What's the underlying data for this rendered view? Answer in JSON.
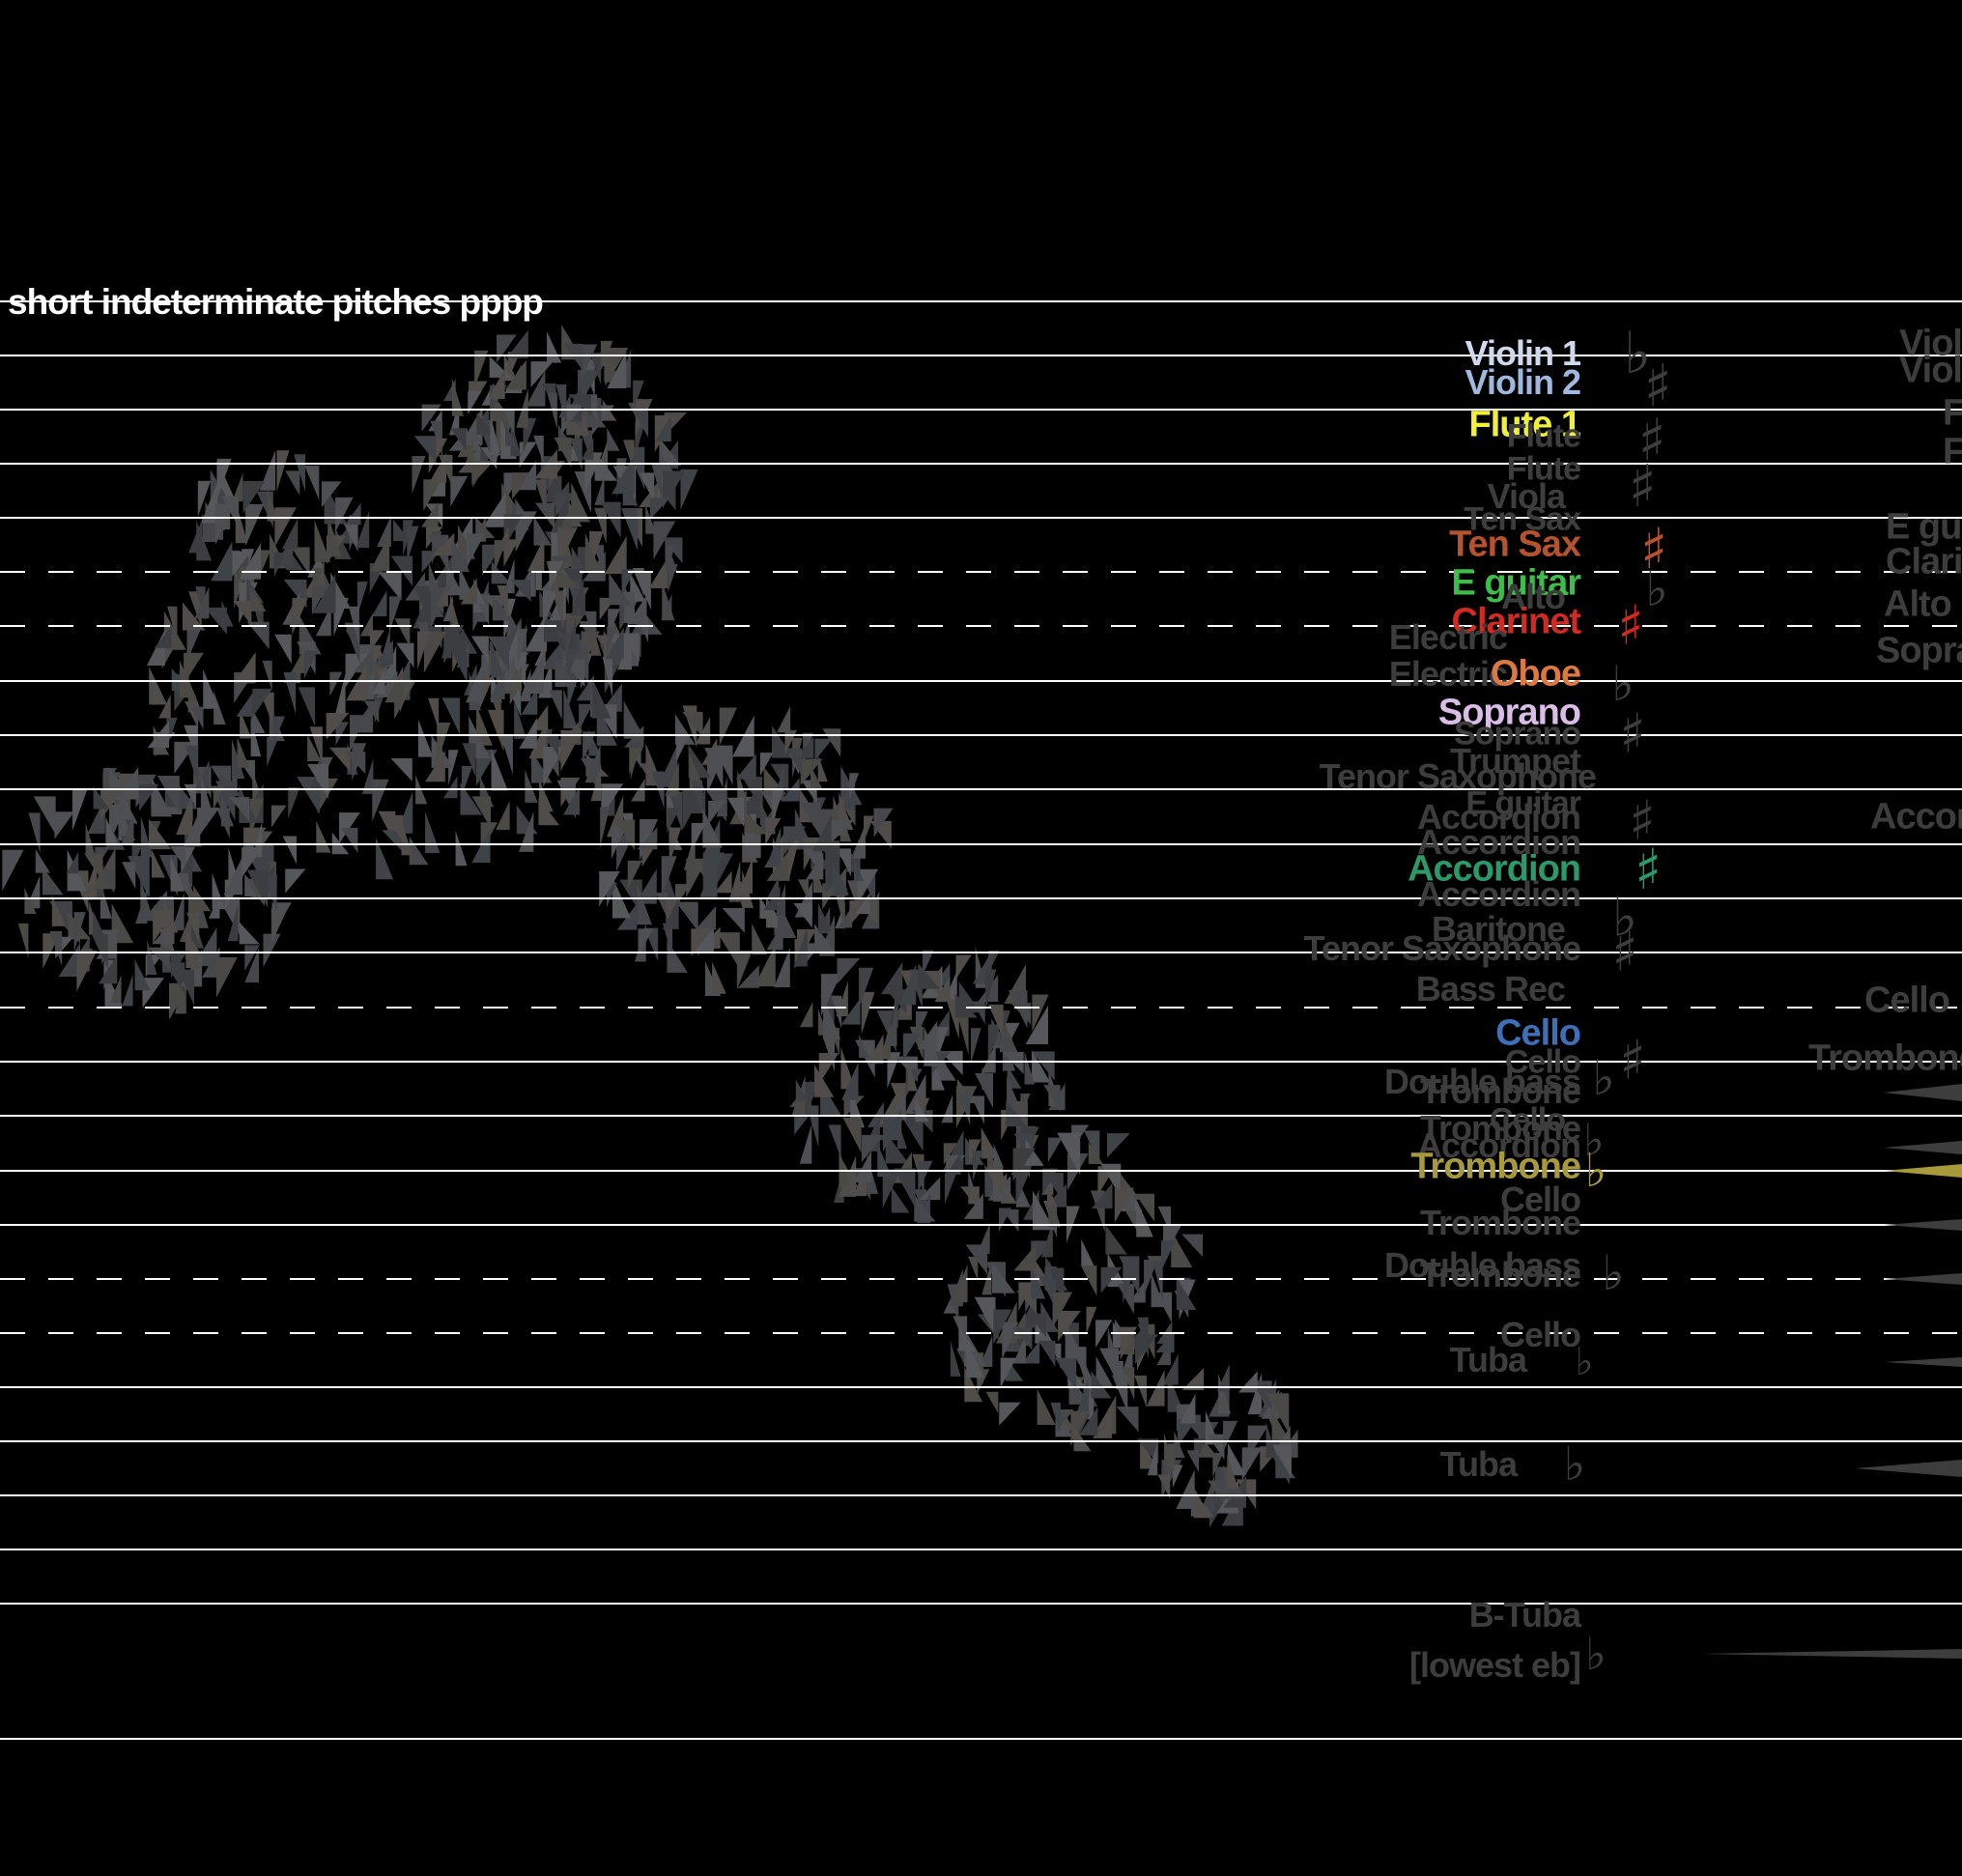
{
  "title": "short indeterminate pitches pppp",
  "colors": {
    "background": "#000000",
    "staff_line": "#ffffff",
    "swarm": "#4a4c50",
    "ghost": "#3a3a3a"
  },
  "labels": [
    {
      "text": "Violin 1",
      "color": "#cfd9ee",
      "size": 36
    },
    {
      "text": "Violin 2",
      "color": "#9fb8de",
      "size": 36
    },
    {
      "text": "Flute 1",
      "color": "#f0ef3a",
      "size": 38
    },
    {
      "text": "Flute",
      "color": "#3d3d3d",
      "size": 34
    },
    {
      "text": "Flute",
      "color": "#3d3d3d",
      "size": 34
    },
    {
      "text": "Viola",
      "color": "#3d3d3d",
      "size": 36
    },
    {
      "text": "Ten Sax",
      "color": "#3d3d3d",
      "size": 34
    },
    {
      "text": "Ten Sax",
      "color": "#b6532e",
      "size": 38
    },
    {
      "text": "E guitar",
      "color": "#3fbd4a",
      "size": 38
    },
    {
      "text": "Alto",
      "color": "#3d3d3d",
      "size": 36
    },
    {
      "text": "Clarinet",
      "color": "#d02a22",
      "size": 38
    },
    {
      "text": "Electric",
      "color": "#3d3d3d",
      "size": 36
    },
    {
      "text": "Electric",
      "color": "#3d3d3d",
      "size": 36
    },
    {
      "text": "Oboe",
      "color": "#dd7840",
      "size": 38
    },
    {
      "text": "Soprano",
      "color": "#d9bde6",
      "size": 38
    },
    {
      "text": "Soprano",
      "color": "#3d3d3d",
      "size": 34
    },
    {
      "text": "Trumpet",
      "color": "#3d3d3d",
      "size": 36
    },
    {
      "text": "Tenor Saxophone",
      "color": "#3d3d3d",
      "size": 36
    },
    {
      "text": "E guitar",
      "color": "#3d3d3d",
      "size": 34
    },
    {
      "text": "Accordion",
      "color": "#3d3d3d",
      "size": 36
    },
    {
      "text": "Accordion",
      "color": "#3d3d3d",
      "size": 36
    },
    {
      "text": "Accordion",
      "color": "#2a9a6a",
      "size": 38
    },
    {
      "text": "Accordion",
      "color": "#3d3d3d",
      "size": 36
    },
    {
      "text": "Baritone",
      "color": "#3d3d3d",
      "size": 36
    },
    {
      "text": "Tenor Saxophone",
      "color": "#3d3d3d",
      "size": 36
    },
    {
      "text": "Bass Rec",
      "color": "#3d3d3d",
      "size": 36
    },
    {
      "text": "Cello",
      "color": "#3e70b8",
      "size": 38
    },
    {
      "text": "Cello",
      "color": "#3d3d3d",
      "size": 34
    },
    {
      "text": "Double bass",
      "color": "#3d3d3d",
      "size": 36
    },
    {
      "text": "Trombone",
      "color": "#3d3d3d",
      "size": 36
    },
    {
      "text": "Cello",
      "color": "#3d3d3d",
      "size": 34
    },
    {
      "text": "Trombone",
      "color": "#3d3d3d",
      "size": 36
    },
    {
      "text": "Accordion",
      "color": "#3d3d3d",
      "size": 36
    },
    {
      "text": "Trombone",
      "color": "#a89a3a",
      "size": 38
    },
    {
      "text": "Cello",
      "color": "#3d3d3d",
      "size": 36
    },
    {
      "text": "Trombone",
      "color": "#3d3d3d",
      "size": 36
    },
    {
      "text": "Double bass",
      "color": "#3d3d3d",
      "size": 36
    },
    {
      "text": "Trombone",
      "color": "#3d3d3d",
      "size": 36
    },
    {
      "text": "Cello",
      "color": "#3d3d3d",
      "size": 36
    },
    {
      "text": "Tuba",
      "color": "#3d3d3d",
      "size": 36
    },
    {
      "text": "Tuba",
      "color": "#3d3d3d",
      "size": 36
    },
    {
      "text": "B-Tuba",
      "color": "#3d3d3d",
      "size": 36
    },
    {
      "text": "[lowest eb]",
      "color": "#3d3d3d",
      "size": 36
    }
  ],
  "far_labels": [
    {
      "text": "Viol",
      "color": "#3d3d3d"
    },
    {
      "text": "Violi",
      "color": "#3d3d3d"
    },
    {
      "text": "Flu",
      "color": "#3d3d3d"
    },
    {
      "text": "Flut",
      "color": "#3d3d3d"
    },
    {
      "text": "E gui",
      "color": "#3d3d3d"
    },
    {
      "text": "Clari",
      "color": "#3d3d3d"
    },
    {
      "text": "Alto s",
      "color": "#3d3d3d"
    },
    {
      "text": "Sopra",
      "color": "#3d3d3d"
    },
    {
      "text": "Accor",
      "color": "#3d3d3d"
    },
    {
      "text": "Cello",
      "color": "#3d3d3d"
    },
    {
      "text": "Trombone",
      "color": "#3d3d3d"
    }
  ],
  "accidentals": [
    {
      "glyph": "♭",
      "color": "#3d3d3d"
    },
    {
      "glyph": "♯",
      "color": "#3d3d3d"
    },
    {
      "glyph": "♯",
      "color": "#3d3d3d"
    },
    {
      "glyph": "♯",
      "color": "#3d3d3d"
    },
    {
      "glyph": "♯",
      "color": "#b6532e"
    },
    {
      "glyph": "♭",
      "color": "#3d3d3d"
    },
    {
      "glyph": "♯",
      "color": "#d02a22"
    },
    {
      "glyph": "♭",
      "color": "#3d3d3d"
    },
    {
      "glyph": "♯",
      "color": "#3d3d3d"
    },
    {
      "glyph": "♯",
      "color": "#3d3d3d"
    },
    {
      "glyph": "♯",
      "color": "#2a9a6a"
    },
    {
      "glyph": "♭",
      "color": "#3d3d3d"
    },
    {
      "glyph": "♯",
      "color": "#3d3d3d"
    },
    {
      "glyph": "♯",
      "color": "#3d3d3d"
    },
    {
      "glyph": "♭",
      "color": "#3d3d3d"
    },
    {
      "glyph": "♭",
      "color": "#3d3d3d"
    },
    {
      "glyph": "♭",
      "color": "#a89a3a"
    },
    {
      "glyph": "♭",
      "color": "#3d3d3d"
    },
    {
      "glyph": "♭",
      "color": "#3d3d3d"
    },
    {
      "glyph": "♭",
      "color": "#3d3d3d"
    },
    {
      "glyph": "♭",
      "color": "#3d3d3d"
    }
  ],
  "wedges": [
    {
      "color": "#3d3d3d"
    },
    {
      "color": "#3d3d3d"
    },
    {
      "color": "#a89a3a"
    },
    {
      "color": "#3d3d3d"
    },
    {
      "color": "#3d3d3d"
    },
    {
      "color": "#3d3d3d"
    },
    {
      "color": "#3d3d3d"
    },
    {
      "color": "#3d3d3d"
    }
  ]
}
